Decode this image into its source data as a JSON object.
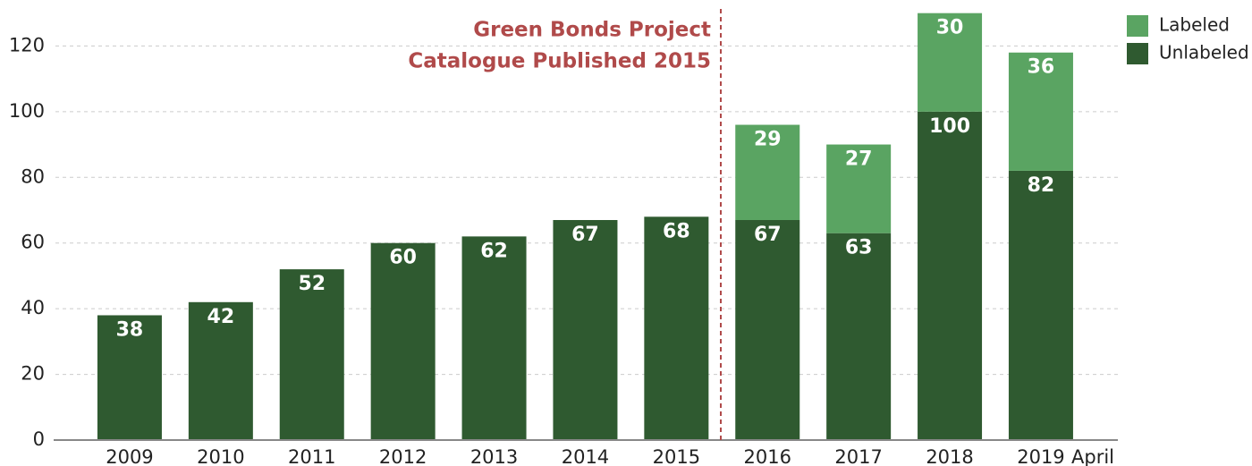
{
  "chart_data": {
    "type": "stacked_bar",
    "categories": [
      "2009",
      "2010",
      "2011",
      "2012",
      "2013",
      "2014",
      "2015",
      "2016",
      "2017",
      "2018",
      "2019"
    ],
    "series": [
      {
        "name": "Unlabeled",
        "color": "#2f5a30",
        "values": [
          38,
          42,
          52,
          60,
          62,
          67,
          68,
          67,
          63,
          100,
          82
        ]
      },
      {
        "name": "Labeled",
        "color": "#5aa462",
        "values": [
          null,
          null,
          null,
          null,
          null,
          null,
          null,
          29,
          27,
          30,
          36
        ]
      }
    ],
    "ylim": [
      0,
      134
    ],
    "yticks": [
      0,
      20,
      40,
      60,
      80,
      100,
      120
    ],
    "grid": true,
    "legend": "upper right",
    "annotations": [
      "Green Bonds Project",
      "Catalogue Published 2015",
      "April"
    ]
  }
}
